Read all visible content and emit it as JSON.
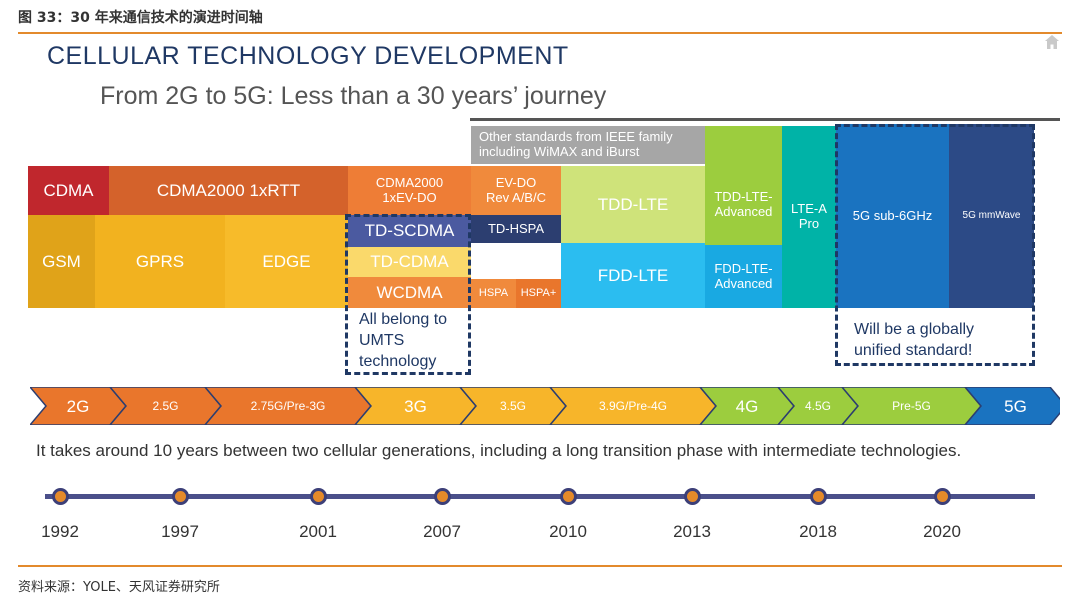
{
  "caption": "图 33：30 年来通信技术的演进时间轴",
  "title": "CELLULAR TECHNOLOGY DEVELOPMENT",
  "subtitle": "From 2G to 5G: Less than a 30 years’ journey",
  "tech": {
    "cdma": "CDMA",
    "cdma2000_1x": "CDMA2000 1xRTT",
    "gsm": "GSM",
    "gprs": "GPRS",
    "edge": "EDGE",
    "cdma2000_ev": "CDMA2000 1xEV-DO",
    "td_scdma": "TD-SCDMA",
    "td_cdma": "TD-CDMA",
    "wcdma": "WCDMA",
    "ieee": "Other standards from IEEE family including WiMAX and iBurst",
    "evdo_rev": "EV-DO Rev A/B/C",
    "td_hspa": "TD-HSPA",
    "hspa": "HSPA",
    "hspa_plus": "HSPA+",
    "tdd_lte": "TDD-LTE",
    "fdd_lte": "FDD-LTE",
    "tdd_lte_adv": "TDD-LTE-Advanced",
    "fdd_lte_adv": "FDD-LTE-Advanced",
    "lte_a_pro": "LTE-A Pro",
    "sub6": "5G sub-6GHz",
    "mmwave": "5G mmWave"
  },
  "notes": {
    "umts": "All belong to UMTS technology",
    "global": "Will be a globally unified standard!"
  },
  "generations": [
    "2G",
    "2.5G",
    "2.75G/Pre-3G",
    "3G",
    "3.5G",
    "3.9G/Pre-4G",
    "4G",
    "4.5G",
    "Pre-5G",
    "5G"
  ],
  "generation_text": "It takes around 10 years between two cellular generations, including a long transition phase with intermediate technologies.",
  "years": [
    "1992",
    "1997",
    "2001",
    "2007",
    "2010",
    "2013",
    "2018",
    "2020"
  ],
  "source": "资料来源：YOLE、天风证券研究所",
  "colors": {
    "rule": "#e38a2c",
    "navy": "#1f3864",
    "cdma": "#c0272d",
    "cdma2000": "#d4622b",
    "gsm": "#e0a319",
    "gprs": "#f2b21f",
    "wcdma_orange": "#f08a3c",
    "ieee_gray": "#a6a6a6",
    "lte_green": "#bcd84c",
    "lte_blue": "#2bbdf0",
    "teal": "#00b3a7",
    "blue5g": "#1a73c0",
    "navy5g": "#2c4a86"
  }
}
